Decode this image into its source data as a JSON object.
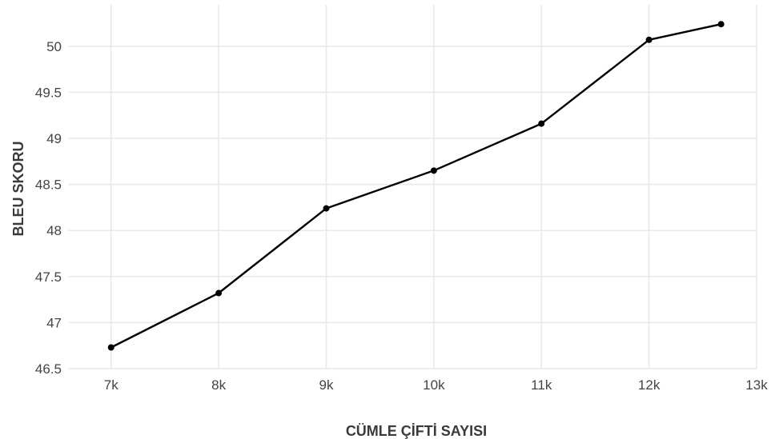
{
  "chart_data": {
    "type": "line",
    "title": "",
    "xlabel": "CÜMLE ÇİFTİ SAYISI",
    "ylabel": "BLEU SKORU",
    "x": [
      7000,
      8000,
      9000,
      10000,
      11000,
      12000,
      12670
    ],
    "y": [
      46.73,
      47.32,
      48.24,
      48.65,
      49.16,
      50.07,
      50.24
    ],
    "xlim": [
      6600,
      13000
    ],
    "ylim": [
      46.5,
      50.45
    ],
    "x_ticks": [
      7000,
      8000,
      9000,
      10000,
      11000,
      12000,
      13000
    ],
    "x_tick_labels": [
      "7k",
      "8k",
      "9k",
      "10k",
      "11k",
      "12k",
      "13k"
    ],
    "y_ticks": [
      46.5,
      47,
      47.5,
      48,
      48.5,
      49,
      49.5,
      50
    ],
    "y_tick_labels": [
      "46.5",
      "47",
      "47.5",
      "48",
      "48.5",
      "49",
      "49.5",
      "50"
    ],
    "grid": true,
    "legend": "none",
    "line_color": "#000000"
  }
}
